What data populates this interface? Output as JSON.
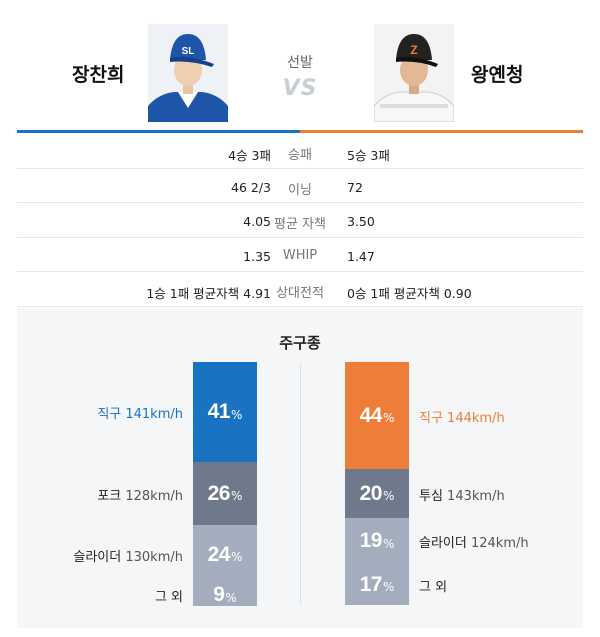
{
  "header": {
    "left_player": "장찬희",
    "right_player": "왕옌청",
    "vs_label": "선발",
    "vs_text": "VS",
    "left_cap_logo": "SL",
    "right_cap_logo": "Z"
  },
  "stats": [
    {
      "left": "4승 3패",
      "label": "승패",
      "right": "5승 3패"
    },
    {
      "left": "46 2/3",
      "label": "이닝",
      "right": "72"
    },
    {
      "left": "4.05",
      "label": "평균 자책",
      "right": "3.50"
    },
    {
      "left": "1.35",
      "label": "WHIP",
      "right": "1.47"
    },
    {
      "left": "1승 1패 평균자책 4.91",
      "label": "상대전적",
      "right": "0승 1패 평균자책 0.90"
    }
  ],
  "pitch": {
    "title": "주구종",
    "pct_sign": "%",
    "left": [
      {
        "name": "직구",
        "speed": "141km/h",
        "value": "41",
        "pct": 41,
        "color": "#1a72c2",
        "label_color": "#1a72c2"
      },
      {
        "name": "포크",
        "speed": "128km/h",
        "value": "26",
        "pct": 26,
        "color": "#6e7a8c",
        "label_color": "#222222"
      },
      {
        "name": "슬라이더",
        "speed": "130km/h",
        "value": "24",
        "pct": 24,
        "color": "#a3adbd",
        "label_color": "#222222"
      },
      {
        "name": "그 외",
        "speed": "",
        "value": "9",
        "pct": 9,
        "color": "#a3adbd",
        "label_color": "#222222"
      }
    ],
    "right": [
      {
        "name": "직구",
        "speed": "144km/h",
        "value": "44",
        "pct": 44,
        "color": "#ef7d3a",
        "label_color": "#ef7d3a"
      },
      {
        "name": "투심",
        "speed": "143km/h",
        "value": "20",
        "pct": 20,
        "color": "#6e7a8c",
        "label_color": "#222222"
      },
      {
        "name": "슬라이더",
        "speed": "124km/h",
        "value": "19",
        "pct": 19,
        "color": "#a3adbd",
        "label_color": "#222222"
      },
      {
        "name": "그 외",
        "speed": "",
        "value": "17",
        "pct": 17,
        "color": "#a3adbd",
        "label_color": "#222222"
      }
    ]
  }
}
